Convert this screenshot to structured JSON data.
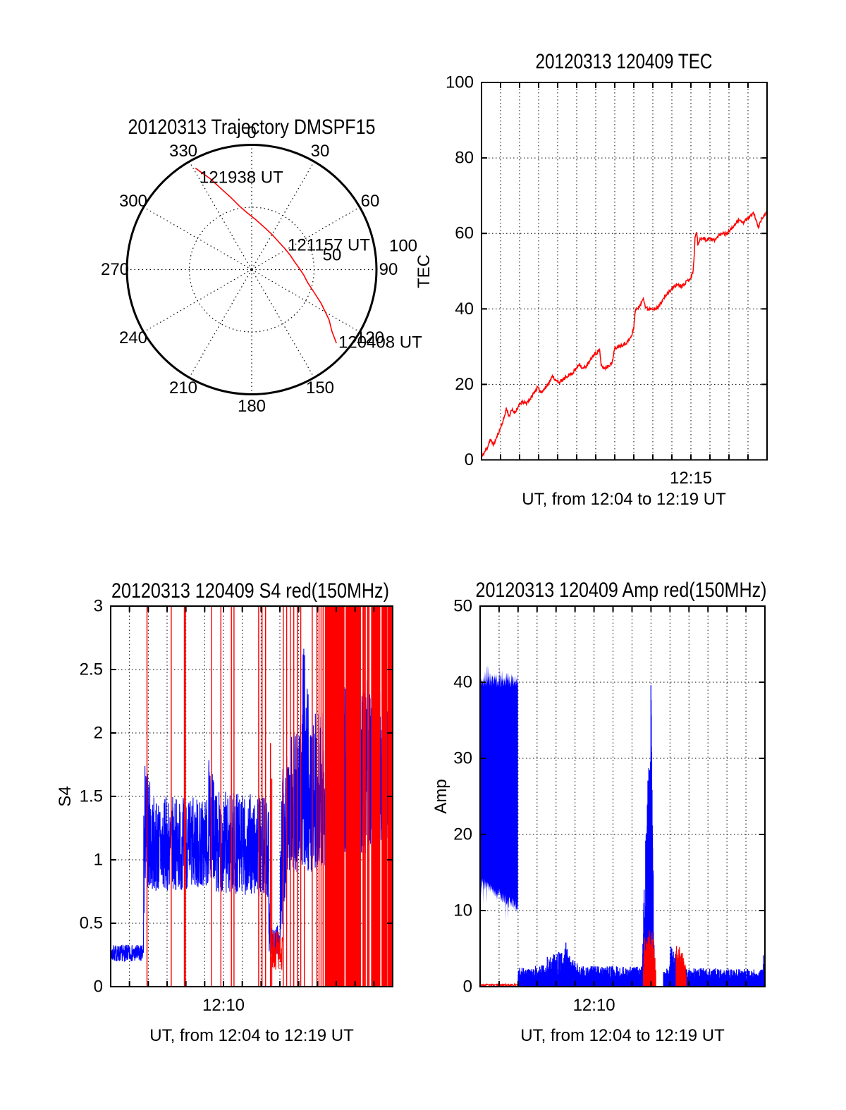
{
  "figure": {
    "background": "#ffffff",
    "foreground": "#000000"
  },
  "chart_data": [
    {
      "type": "polar-line",
      "title": "20120313 Trajectory DMSPF15",
      "angle_ticks": [
        0,
        30,
        60,
        90,
        120,
        150,
        180,
        210,
        240,
        270,
        300,
        330
      ],
      "radial_ticks": [
        "50",
        "100"
      ],
      "rlim": [
        0,
        100
      ],
      "line_color": "#ff0000",
      "annotations": [
        {
          "text": "121938 UT"
        },
        {
          "text": "121157 UT"
        },
        {
          "text": "120408 UT"
        }
      ],
      "trajectory_az_r": [
        [
          131,
          90
        ],
        [
          127.5,
          81
        ],
        [
          123,
          74
        ],
        [
          116,
          62
        ],
        [
          109,
          52
        ],
        [
          103,
          46
        ],
        [
          96,
          42
        ],
        [
          88,
          38
        ],
        [
          80,
          35
        ],
        [
          70,
          33
        ],
        [
          58,
          31.5
        ],
        [
          44,
          31
        ],
        [
          30,
          32.5
        ],
        [
          18,
          35
        ],
        [
          5,
          40
        ],
        [
          355,
          46
        ],
        [
          349,
          52
        ],
        [
          344,
          60
        ],
        [
          339,
          70
        ],
        [
          335.5,
          80
        ],
        [
          332.5,
          88
        ],
        [
          331,
          93
        ]
      ]
    },
    {
      "type": "line",
      "title": "20120313 120409 TEC",
      "xlabel": "UT, from 12:04 to 12:19 UT",
      "ylabel": "TEC",
      "x_start": "12:04",
      "x_end": "12:19",
      "x_minutes": 15,
      "x_tick": {
        "label": "12:15",
        "minute": 11
      },
      "ylim": [
        0,
        100
      ],
      "yticks": [
        0,
        20,
        40,
        60,
        80,
        100
      ],
      "line_color": "#ff0000",
      "points": [
        [
          0,
          0.6
        ],
        [
          0.15,
          2
        ],
        [
          0.3,
          3.2
        ],
        [
          0.45,
          5.4
        ],
        [
          0.55,
          4.6
        ],
        [
          0.65,
          4.1
        ],
        [
          0.8,
          6
        ],
        [
          1.0,
          8.5
        ],
        [
          1.15,
          10.5
        ],
        [
          1.3,
          13.6
        ],
        [
          1.45,
          11.6
        ],
        [
          1.6,
          13.2
        ],
        [
          1.75,
          12.6
        ],
        [
          1.9,
          13.8
        ],
        [
          2.1,
          15.3
        ],
        [
          2.35,
          15
        ],
        [
          2.6,
          16.4
        ],
        [
          2.8,
          18.2
        ],
        [
          2.95,
          19.2
        ],
        [
          3.1,
          18
        ],
        [
          3.25,
          18.4
        ],
        [
          3.45,
          19.8
        ],
        [
          3.6,
          21
        ],
        [
          3.75,
          22.3
        ],
        [
          3.9,
          20.9
        ],
        [
          4.1,
          20.6
        ],
        [
          4.3,
          21.3
        ],
        [
          4.55,
          22.4
        ],
        [
          4.8,
          23.1
        ],
        [
          5.0,
          24.4
        ],
        [
          5.15,
          25.6
        ],
        [
          5.3,
          24.1
        ],
        [
          5.5,
          24.8
        ],
        [
          5.7,
          26.2
        ],
        [
          5.9,
          27.9
        ],
        [
          6.05,
          28.3
        ],
        [
          6.2,
          29.3
        ],
        [
          6.28,
          25.1
        ],
        [
          6.45,
          24.2
        ],
        [
          6.65,
          24.9
        ],
        [
          6.85,
          25.6
        ],
        [
          7.0,
          29.5
        ],
        [
          7.15,
          30
        ],
        [
          7.35,
          30.4
        ],
        [
          7.55,
          30.8
        ],
        [
          7.75,
          31.7
        ],
        [
          7.9,
          33
        ],
        [
          8.0,
          35.2
        ],
        [
          8.08,
          39.6
        ],
        [
          8.2,
          40.2
        ],
        [
          8.35,
          40.9
        ],
        [
          8.5,
          43.2
        ],
        [
          8.6,
          40.6
        ],
        [
          8.75,
          39.9
        ],
        [
          8.95,
          40.3
        ],
        [
          9.15,
          39.8
        ],
        [
          9.4,
          41.4
        ],
        [
          9.65,
          43.4
        ],
        [
          9.9,
          44.7
        ],
        [
          10.1,
          45.9
        ],
        [
          10.3,
          46.5
        ],
        [
          10.5,
          46
        ],
        [
          10.7,
          46.9
        ],
        [
          10.9,
          47.8
        ],
        [
          11.05,
          48.7
        ],
        [
          11.12,
          50.2
        ],
        [
          11.18,
          55
        ],
        [
          11.22,
          58.8
        ],
        [
          11.3,
          60.6
        ],
        [
          11.36,
          57.2
        ],
        [
          11.5,
          58.4
        ],
        [
          11.65,
          59
        ],
        [
          11.8,
          58.1
        ],
        [
          11.95,
          58.8
        ],
        [
          12.1,
          58.2
        ],
        [
          12.3,
          58.4
        ],
        [
          12.5,
          59.7
        ],
        [
          12.65,
          60.2
        ],
        [
          12.8,
          59.8
        ],
        [
          12.95,
          60.3
        ],
        [
          13.15,
          61.4
        ],
        [
          13.35,
          62.4
        ],
        [
          13.55,
          63.8
        ],
        [
          13.7,
          62.8
        ],
        [
          13.85,
          63.2
        ],
        [
          14.0,
          63.9
        ],
        [
          14.15,
          64.8
        ],
        [
          14.3,
          65.4
        ],
        [
          14.45,
          63
        ],
        [
          14.55,
          61.8
        ],
        [
          14.7,
          63.6
        ],
        [
          14.85,
          64.9
        ],
        [
          15,
          65.4
        ]
      ]
    },
    {
      "type": "scintillation",
      "title": "20120313 120409 S4 red(150MHz)",
      "xlabel": "UT, from 12:04 to 12:19 UT",
      "ylabel": "S4",
      "x_start": "12:04",
      "x_end": "12:19",
      "x_minutes": 15,
      "x_tick": {
        "label": "12:10",
        "minute": 6
      },
      "ylim": [
        0,
        3
      ],
      "yticks": [
        0,
        0.5,
        1,
        1.5,
        2,
        2.5,
        3
      ],
      "blue_color": "#0000ff",
      "red_color": "#ff0000",
      "blue_envelope": [
        [
          0,
          1.75,
          0.2,
          0.33,
          0.2,
          0.33
        ],
        [
          1.75,
          1.82,
          0.3,
          1.6,
          0.8,
          1.6
        ],
        [
          1.82,
          2.3,
          0.8,
          1.8,
          0.75,
          1.5
        ],
        [
          2.3,
          5.2,
          0.75,
          1.5,
          0.78,
          1.5
        ],
        [
          5.2,
          5.6,
          0.85,
          1.8,
          0.85,
          1.6
        ],
        [
          5.6,
          8.4,
          0.75,
          1.55,
          0.7,
          1.5
        ],
        [
          8.4,
          8.55,
          0.28,
          1.2,
          0.25,
          0.45
        ],
        [
          8.55,
          9.0,
          0.22,
          0.45,
          0.25,
          0.5
        ],
        [
          9.0,
          9.4,
          0.3,
          1.75,
          0.9,
          1.95
        ],
        [
          9.4,
          10.2,
          0.9,
          2.05,
          0.9,
          2.1
        ],
        [
          10.2,
          10.6,
          0.95,
          2.75,
          0.9,
          2.35
        ],
        [
          10.6,
          12.0,
          0.9,
          2.15,
          1.0,
          2.2
        ],
        [
          12.0,
          12.6,
          1.0,
          2.55,
          1.0,
          2.3
        ],
        [
          12.6,
          13.6,
          1.0,
          2.25,
          1.05,
          2.35
        ],
        [
          13.6,
          14.5,
          1.1,
          2.45,
          1.15,
          2.3
        ],
        [
          14.5,
          15,
          1.15,
          2.2,
          1.2,
          2.15
        ]
      ],
      "red_full_spikes": [
        1.93,
        3.22,
        3.92,
        3.98,
        5.37,
        5.86,
        6.42,
        6.56,
        7.87,
        8.05,
        8.24,
        9.18,
        9.36,
        9.55,
        9.74,
        9.93,
        10.11,
        10.72,
        10.97,
        11.08,
        11.19,
        11.3
      ],
      "red_partial_spikes": [
        [
          8.5,
          1.92
        ],
        [
          8.57,
          1.64
        ],
        [
          10.3,
          0.95
        ],
        [
          11.52,
          2.62
        ]
      ],
      "red_noise_band": [
        8.55,
        9.15,
        0.12,
        0.45
      ],
      "red_dense_bands": [
        [
          11.4,
          12.42,
          0.018,
          0.22
        ],
        [
          12.52,
          13.3,
          0.015,
          0.08
        ],
        [
          13.42,
          13.56,
          0.03,
          0.3
        ],
        [
          13.66,
          13.78,
          0.028,
          0.3
        ],
        [
          13.88,
          14.32,
          0.014,
          0.07
        ],
        [
          14.4,
          14.68,
          0.016,
          0.12
        ],
        [
          14.74,
          15.0,
          0.014,
          0.08
        ]
      ]
    },
    {
      "type": "scintillation",
      "title": "20120313 120409 Amp red(150MHz)",
      "xlabel": "UT, from 12:04 to 12:19 UT",
      "ylabel": "Amp",
      "x_start": "12:04",
      "x_end": "12:19",
      "x_minutes": 15,
      "x_tick": {
        "label": "12:10",
        "minute": 6
      },
      "ylim": [
        0,
        50
      ],
      "yticks": [
        0,
        10,
        20,
        30,
        40,
        50
      ],
      "blue_color": "#0000ff",
      "red_color": "#ff0000",
      "blue_block": {
        "t0": 0,
        "t1": 2.0,
        "top_base": 40,
        "top_jitter": 2.0,
        "bottom_start": 13.8,
        "bottom_end": 10.3
      },
      "red_baseline": [
        0,
        2.0,
        0.1,
        0.35
      ],
      "blue_baseline_envelope": [
        [
          2.0,
          2.9,
          0.7,
          2.5,
          0.7,
          2.5
        ],
        [
          2.9,
          3.5,
          0.8,
          3.1,
          0.8,
          2.8
        ],
        [
          3.5,
          3.85,
          0.9,
          4.3,
          0.9,
          4.0
        ],
        [
          3.85,
          4.45,
          0.9,
          4.7,
          0.9,
          4.4
        ],
        [
          4.45,
          4.85,
          1.0,
          6.4,
          0.9,
          3.4
        ],
        [
          4.85,
          5.25,
          0.9,
          3.6,
          0.8,
          2.8
        ],
        [
          5.25,
          8.55,
          0.7,
          2.7,
          0.7,
          2.7
        ],
        [
          9.65,
          10.0,
          0.7,
          2.3,
          0.8,
          2.5
        ],
        [
          10.9,
          14.9,
          0.6,
          2.5,
          0.7,
          2.3
        ],
        [
          14.9,
          15,
          0.8,
          4.8,
          0.8,
          2.4
        ]
      ],
      "blue_baseline_gap": [
        9.2,
        9.65
      ],
      "blue_spike_envelope": [
        [
          8.55,
          3
        ],
        [
          8.6,
          9
        ],
        [
          8.64,
          13
        ],
        [
          8.68,
          8
        ],
        [
          8.72,
          20
        ],
        [
          8.76,
          28
        ],
        [
          8.79,
          23
        ],
        [
          8.82,
          33.5
        ],
        [
          8.85,
          26
        ],
        [
          8.88,
          30
        ],
        [
          8.91,
          27
        ],
        [
          8.94,
          32
        ],
        [
          8.97,
          35
        ],
        [
          9.0,
          40.3
        ],
        [
          9.02,
          36
        ],
        [
          9.05,
          30
        ],
        [
          9.08,
          25
        ],
        [
          9.11,
          17
        ],
        [
          9.14,
          9
        ],
        [
          9.18,
          4
        ],
        [
          9.2,
          1.5
        ]
      ],
      "red_spike_envelope": [
        [
          8.6,
          3.5
        ],
        [
          8.66,
          6.5
        ],
        [
          8.72,
          5
        ],
        [
          8.78,
          8.3
        ],
        [
          8.84,
          6.5
        ],
        [
          8.9,
          7.8
        ],
        [
          8.96,
          6
        ],
        [
          9.02,
          8.5
        ],
        [
          9.08,
          7.5
        ],
        [
          9.14,
          8
        ],
        [
          9.2,
          5
        ],
        [
          9.26,
          2.5
        ]
      ],
      "blue_bump_envelope": [
        [
          9.97,
          2.5
        ],
        [
          10.02,
          5.6
        ],
        [
          10.06,
          6.3
        ],
        [
          10.12,
          5.0
        ],
        [
          10.2,
          4.6
        ],
        [
          10.3,
          4.3
        ],
        [
          10.45,
          3.9
        ],
        [
          10.6,
          3.3
        ],
        [
          10.75,
          2.7
        ],
        [
          10.9,
          2.3
        ]
      ],
      "red_bump_envelope": [
        [
          10.32,
          5.3
        ],
        [
          10.38,
          5.8
        ],
        [
          10.44,
          4.8
        ],
        [
          10.5,
          5.5
        ],
        [
          10.56,
          4.3
        ],
        [
          10.62,
          4.9
        ],
        [
          10.68,
          4.2
        ],
        [
          10.74,
          3.6
        ],
        [
          10.8,
          3.0
        ],
        [
          10.86,
          2.3
        ]
      ]
    }
  ]
}
